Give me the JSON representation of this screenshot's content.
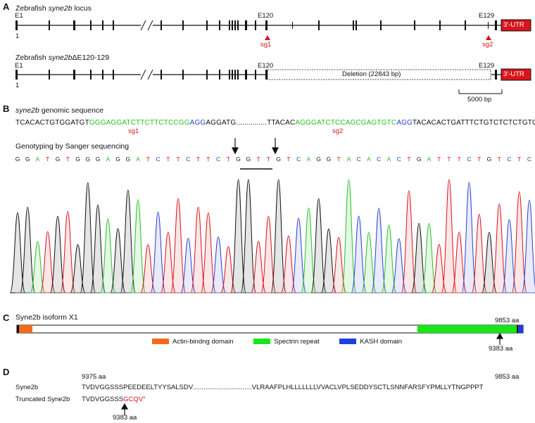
{
  "panelA": {
    "label": "A",
    "locus_title": "Zebrafish syne2b locus",
    "locus_prefix": "Zebrafish ",
    "locus_gene": "syne2b",
    "locus_suffix": " locus",
    "deletion_title_prefix": "Zebrafish ",
    "deletion_title_gene": "syne2b",
    "deletion_title_suffix": "ΔE120-129",
    "e1": "E1",
    "one": "1",
    "e120": "E120",
    "e129": "E129",
    "utr": "3'-UTR",
    "sg1": "sg1",
    "sg2": "sg2",
    "deletion_label": "Deletion (22843 bp)",
    "scale_label": "5000 bp",
    "colors": {
      "utr": "#d9141a",
      "arrow": "#d9141a"
    }
  },
  "panelB": {
    "label": "B",
    "seq_title_gene": "syne2b",
    "seq_title_rest": " genomic sequence",
    "seq_1_black": "TCACACTGTGGATGT",
    "seq_1_green": "GGGAGGATCTTCTTCTCCGG",
    "seq_1_blue": "AGG",
    "seq_1_black2": "AGGATG...............TTACAC",
    "seq_2_green": "AGGGATCTCCAGCGAGTGTC",
    "seq_2_blue": "AGG",
    "seq_2_black": "TACACACTGATTTCTGTCTCTCTGTGTGTG",
    "sg1": "sg1",
    "sg2": "sg2",
    "sanger_title": "Genotyping by Sanger sequencing",
    "trace_bases": [
      "G",
      "G",
      "A",
      "T",
      "G",
      "T",
      "G",
      "G",
      "G",
      "A",
      "G",
      "G",
      "A",
      "T",
      "C",
      "T",
      "T",
      "C",
      "T",
      "T",
      "C",
      "T",
      "G",
      "G",
      "T",
      "T",
      "G",
      "T",
      "C",
      "A",
      "G",
      "G",
      "T",
      "A",
      "C",
      "A",
      "C",
      "A",
      "C",
      "T",
      "G",
      "A",
      "T",
      "T",
      "T",
      "C",
      "T",
      "G",
      "T",
      "C",
      "T",
      "C"
    ],
    "base_colors": {
      "A": "#27c127",
      "C": "#2a3fcf",
      "G": "#111111",
      "T": "#d9141a"
    }
  },
  "panelC": {
    "label": "C",
    "title": "Syne2b isoform X1",
    "end_label": "9853 aa",
    "site_label": "9383 aa",
    "legend": [
      {
        "name": "Actin-bindng domain",
        "color": "#f26a1b"
      },
      {
        "name": "Spectrin repeat",
        "color": "#19e619"
      },
      {
        "name": "KASH domain",
        "color": "#1d3fe0"
      }
    ]
  },
  "panelD": {
    "label": "D",
    "start_aa": "9375 aa",
    "end_aa": "9853 aa",
    "wt_name": "Syne2b",
    "wt_seq": "TVDVGGSSSPEEDEELTYYSALSDV................................VLRAAFPLHLLLLLLLVVACLVPLSEDDYSCTLSNNFARSFYPMLLYTNGPPPT",
    "trunc_name": "Truncated Syne2b",
    "trunc_seq_black": "TVDVGGSSS",
    "trunc_seq_red": "GCQV",
    "trunc_star": "*",
    "site_label": "9383 aa"
  }
}
